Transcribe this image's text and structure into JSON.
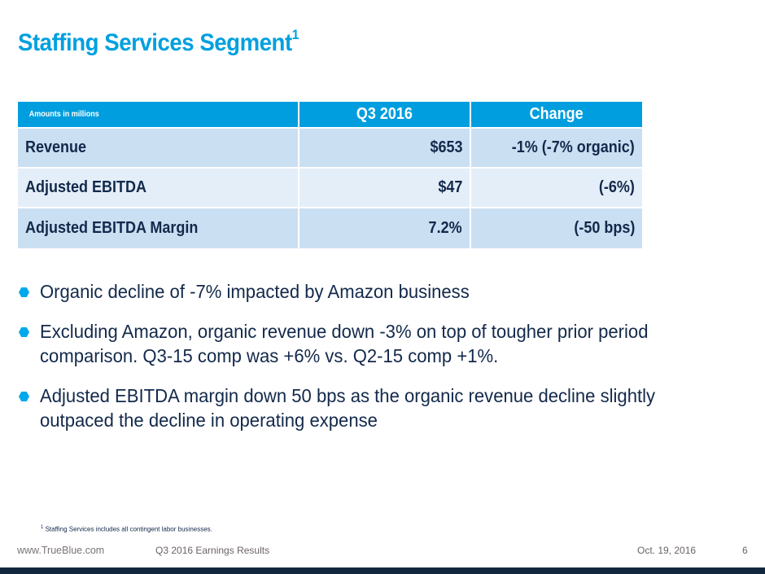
{
  "slide": {
    "title": "Staffing Services Segment",
    "title_footnote_marker": "1"
  },
  "table": {
    "headers": [
      "Amounts in millions",
      "Q3 2016",
      "Change"
    ],
    "rows": [
      {
        "label": "Revenue",
        "q3_2016": "$653",
        "change": "-1% (-7% organic)"
      },
      {
        "label": "Adjusted EBITDA",
        "q3_2016": "$47",
        "change": "(-6%)"
      },
      {
        "label": "Adjusted EBITDA Margin",
        "q3_2016": "7.2%",
        "change": "(-50 bps)"
      }
    ]
  },
  "bullets": [
    {
      "icon": "hexagon-bullet-icon",
      "text": "Organic decline of -7% impacted by Amazon business"
    },
    {
      "icon": "hexagon-bullet-icon",
      "text": "Excluding Amazon, organic revenue down -3% on top of tougher prior period comparison.  Q3-15 comp was +6% vs. Q2-15 comp +1%."
    },
    {
      "icon": "hexagon-bullet-icon",
      "text": "Adjusted EBITDA margin down 50 bps as the organic revenue decline slightly outpaced the decline in operating expense"
    }
  ],
  "footnote": {
    "marker": "1",
    "text": "Staffing Services includes all contingent labor businesses."
  },
  "footer": {
    "website": "www.TrueBlue.com",
    "presentation_title": "Q3 2016 Earnings Results",
    "date": "Oct. 19, 2016",
    "page_number": "6"
  },
  "colors": {
    "title_blue": "#00a0df",
    "header_blue": "#009ede",
    "row_light": "#cadff2",
    "row_lighter": "#e4eef8",
    "navy_text": "#13294b",
    "bottom_bar": "#12283f",
    "bullet_blue": "#00a9ec"
  }
}
